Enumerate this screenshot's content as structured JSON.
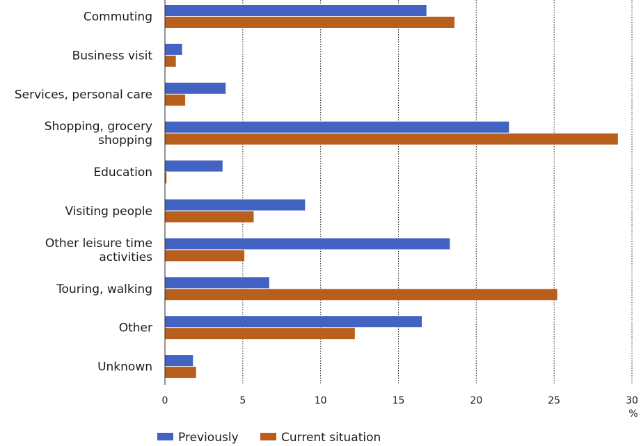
{
  "chart_data": {
    "type": "bar",
    "orientation": "horizontal",
    "categories": [
      [
        "Commuting"
      ],
      [
        "Business visit"
      ],
      [
        "Services, personal care"
      ],
      [
        "Shopping, grocery",
        "shopping"
      ],
      [
        "Education"
      ],
      [
        "Visiting people"
      ],
      [
        "Other leisure time",
        "activities"
      ],
      [
        "Touring, walking"
      ],
      [
        "Other"
      ],
      [
        "Unknown"
      ]
    ],
    "series": [
      {
        "name": "Previously",
        "color": "#4263c2",
        "values": [
          16.8,
          1.1,
          3.9,
          22.1,
          3.7,
          9.0,
          18.3,
          6.7,
          16.5,
          1.8
        ]
      },
      {
        "name": "Current situation",
        "color": "#b95f1e",
        "values": [
          18.6,
          0.7,
          1.3,
          29.1,
          0.1,
          5.7,
          5.1,
          25.2,
          12.2,
          2.0
        ]
      }
    ],
    "xlim": [
      0,
      30
    ],
    "xticks": [
      "0",
      "5",
      "10",
      "15",
      "20",
      "25",
      "30"
    ],
    "unit_label": "%",
    "grid": "vertical dotted",
    "legend_position": "bottom"
  }
}
